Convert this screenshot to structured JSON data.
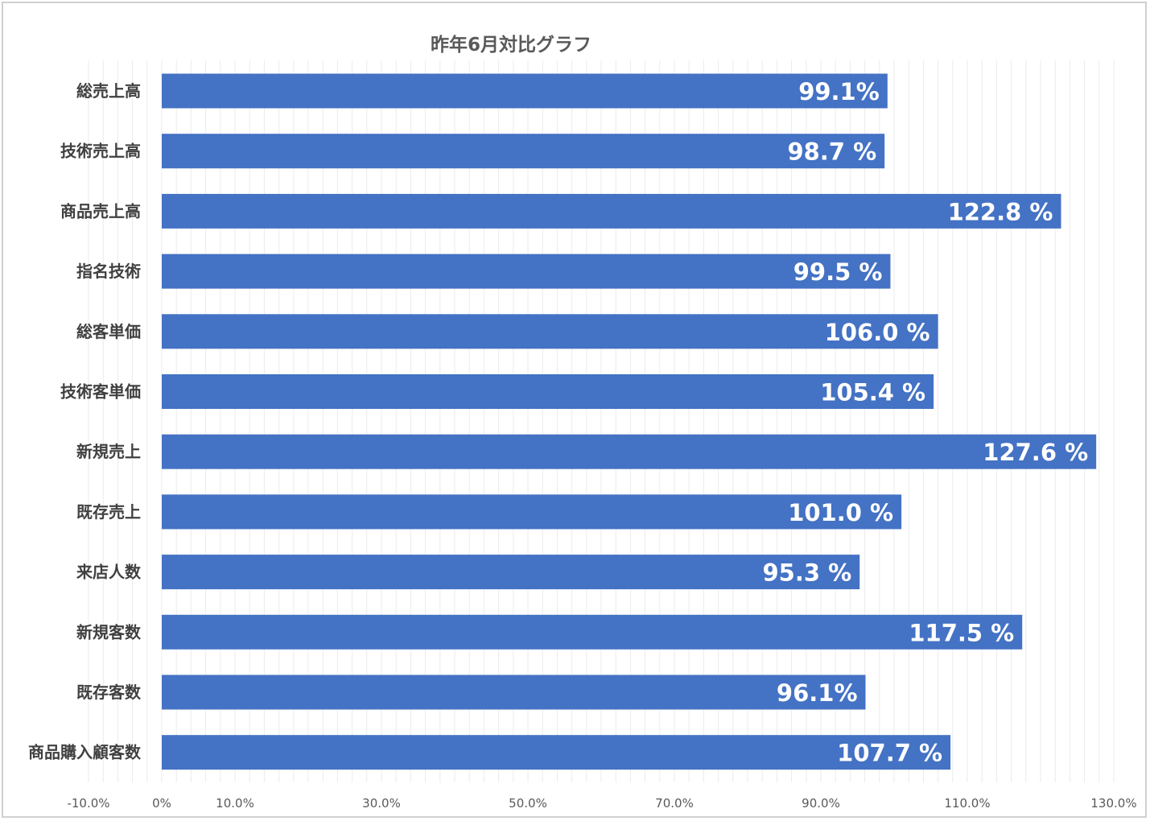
{
  "chart_data": {
    "type": "bar",
    "orientation": "horizontal",
    "title": "昨年6月対比グラフ",
    "categories": [
      "総売上高",
      "技術売上高",
      "商品売上高",
      "指名技術",
      "総客単価",
      "技術客単価",
      "新規売上",
      "既存売上",
      "来店人数",
      "新規客数",
      "既存客数",
      "商品購入顧客数"
    ],
    "values": [
      99.1,
      98.7,
      122.8,
      99.5,
      106.0,
      105.4,
      127.6,
      101.0,
      95.3,
      117.5,
      96.1,
      107.7
    ],
    "data_labels": [
      "99.1%",
      "98.7 %",
      "122.8 %",
      "99.5 %",
      "106.0 %",
      "105.4 %",
      "127.6 %",
      "101.0 %",
      "95.3 %",
      "117.5 %",
      "96.1%",
      "107.7 %"
    ],
    "xlim": [
      -10,
      130
    ],
    "x_tick_labels": [
      "-10.0%",
      "0%",
      "10.0%",
      "30.0%",
      "50.0%",
      "70.0%",
      "90.0%",
      "110.0%",
      "130.0%"
    ],
    "x_tick_values": [
      -10,
      0,
      10,
      30,
      50,
      70,
      90,
      110,
      130
    ],
    "xlabel": "",
    "ylabel": "",
    "grid": true,
    "legend": "none",
    "bar_color": "#4472c4"
  }
}
